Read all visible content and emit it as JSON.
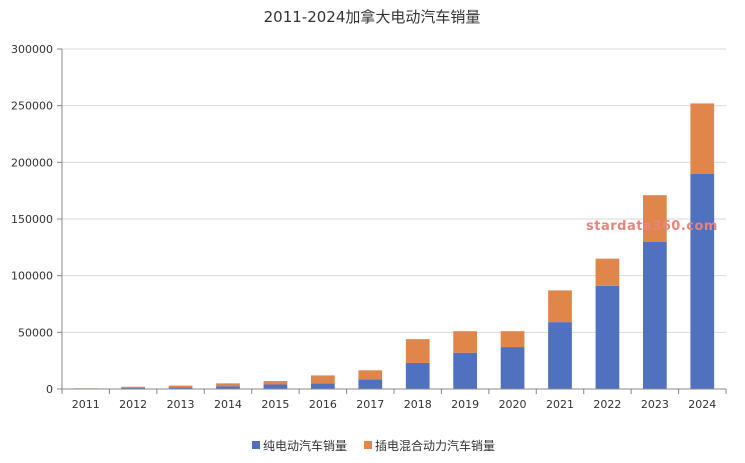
{
  "chart_data": {
    "type": "bar",
    "stacked": true,
    "title": "2011-2024加拿大电动汽车销量",
    "categories": [
      "2011",
      "2012",
      "2013",
      "2014",
      "2015",
      "2016",
      "2017",
      "2018",
      "2019",
      "2020",
      "2021",
      "2022",
      "2023",
      "2024"
    ],
    "series": [
      {
        "name": "纯电动汽车销量",
        "color": "#5070c0",
        "values": [
          300,
          1000,
          1500,
          2500,
          4000,
          5000,
          8500,
          23000,
          32000,
          37000,
          59000,
          91000,
          130000,
          190000
        ]
      },
      {
        "name": "插电混合动力汽车销量",
        "color": "#e0864a",
        "values": [
          300,
          1000,
          1500,
          2500,
          3000,
          7000,
          8000,
          21000,
          19000,
          14000,
          28000,
          24000,
          41000,
          62000
        ]
      }
    ],
    "ylim": [
      0,
      300000
    ],
    "yticks": [
      "0",
      "50000",
      "100000",
      "150000",
      "200000",
      "250000",
      "300000"
    ],
    "grid": true,
    "legend_position": "bottom",
    "watermark": "stardata360.com"
  }
}
